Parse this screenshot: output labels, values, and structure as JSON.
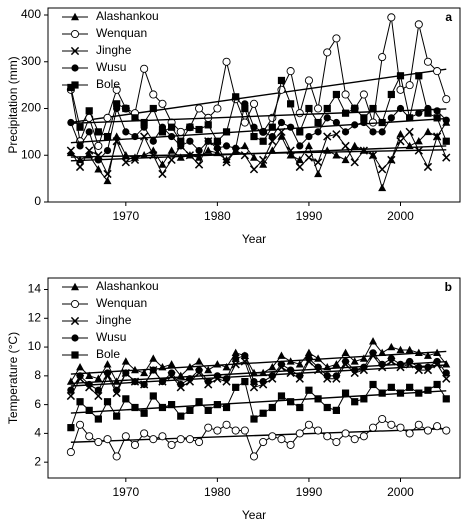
{
  "chart_data": [
    {
      "type": "line",
      "panel_label": "a",
      "x_label": "Year",
      "y_label": "Precipitation (mm)",
      "x": [
        1964,
        1965,
        1966,
        1967,
        1968,
        1969,
        1970,
        1971,
        1972,
        1973,
        1974,
        1975,
        1976,
        1977,
        1978,
        1979,
        1980,
        1981,
        1982,
        1983,
        1984,
        1985,
        1986,
        1987,
        1988,
        1989,
        1990,
        1991,
        1992,
        1993,
        1994,
        1995,
        1996,
        1997,
        1998,
        1999,
        2000,
        2001,
        2002,
        2003,
        2004,
        2005
      ],
      "xlim": [
        1961.5,
        2006.5
      ],
      "xticks": [
        1970,
        1980,
        1990,
        2000
      ],
      "ylim": [
        0,
        415
      ],
      "yticks": [
        0,
        100,
        200,
        300,
        400
      ],
      "legend": "top-left",
      "trend_lines": true,
      "series": [
        {
          "name": "Alashankou",
          "marker": "triangle",
          "color": "#000",
          "values": [
            105,
            90,
            100,
            70,
            45,
            140,
            100,
            95,
            100,
            110,
            80,
            110,
            95,
            100,
            95,
            110,
            105,
            90,
            110,
            120,
            95,
            80,
            110,
            140,
            100,
            90,
            120,
            60,
            110,
            100,
            90,
            120,
            110,
            100,
            30,
            90,
            145,
            120,
            130,
            150,
            140,
            170
          ]
        },
        {
          "name": "Wenquan",
          "marker": "open-circle",
          "color": "#000",
          "values": [
            240,
            130,
            180,
            120,
            180,
            240,
            200,
            190,
            285,
            230,
            210,
            170,
            150,
            160,
            200,
            180,
            200,
            300,
            220,
            170,
            210,
            150,
            180,
            240,
            280,
            190,
            260,
            200,
            320,
            350,
            230,
            200,
            230,
            170,
            310,
            395,
            240,
            250,
            380,
            300,
            280,
            220
          ]
        },
        {
          "name": "Jinghe",
          "marker": "cross",
          "color": "#000",
          "values": [
            110,
            75,
            110,
            100,
            60,
            130,
            85,
            90,
            140,
            100,
            60,
            90,
            120,
            100,
            80,
            130,
            120,
            85,
            110,
            100,
            70,
            90,
            130,
            150,
            110,
            75,
            95,
            85,
            140,
            145,
            120,
            85,
            110,
            100,
            70,
            90,
            130,
            150,
            110,
            75,
            140,
            95
          ]
        },
        {
          "name": "Wusu",
          "marker": "circle",
          "color": "#000",
          "values": [
            170,
            120,
            150,
            90,
            110,
            200,
            150,
            140,
            160,
            130,
            160,
            140,
            120,
            130,
            110,
            130,
            115,
            120,
            115,
            210,
            160,
            150,
            140,
            170,
            160,
            120,
            140,
            150,
            180,
            170,
            150,
            165,
            170,
            150,
            150,
            180,
            200,
            180,
            190,
            200,
            195,
            175
          ]
        },
        {
          "name": "Bole",
          "marker": "square",
          "color": "#000",
          "values": [
            245,
            160,
            195,
            150,
            140,
            210,
            200,
            180,
            170,
            200,
            150,
            160,
            130,
            160,
            155,
            165,
            130,
            150,
            225,
            200,
            140,
            130,
            160,
            260,
            210,
            150,
            200,
            170,
            200,
            230,
            190,
            200,
            180,
            200,
            170,
            230,
            270,
            180,
            270,
            190,
            180,
            130
          ]
        }
      ]
    },
    {
      "type": "line",
      "panel_label": "b",
      "x_label": "Year",
      "y_label": "Temperature (°C)",
      "x": [
        1964,
        1965,
        1966,
        1967,
        1968,
        1969,
        1970,
        1971,
        1972,
        1973,
        1974,
        1975,
        1976,
        1977,
        1978,
        1979,
        1980,
        1981,
        1982,
        1983,
        1984,
        1985,
        1986,
        1987,
        1988,
        1989,
        1990,
        1991,
        1992,
        1993,
        1994,
        1995,
        1996,
        1997,
        1998,
        1999,
        2000,
        2001,
        2002,
        2003,
        2004,
        2005
      ],
      "xlim": [
        1961.5,
        2006.5
      ],
      "xticks": [
        1970,
        1980,
        1990,
        2000
      ],
      "ylim": [
        0.9,
        14.8
      ],
      "yticks": [
        2,
        4,
        6,
        8,
        10,
        12,
        14
      ],
      "legend": "top-left",
      "trend_lines": true,
      "series": [
        {
          "name": "Alashankou",
          "marker": "triangle",
          "color": "#000",
          "values": [
            7.6,
            8.6,
            8.0,
            7.8,
            8.8,
            7.6,
            9.0,
            8.4,
            8.2,
            9.2,
            8.6,
            8.8,
            8.0,
            8.6,
            9.0,
            8.4,
            8.8,
            8.6,
            9.6,
            9.4,
            8.2,
            8.2,
            8.6,
            9.4,
            9.0,
            8.8,
            9.6,
            9.2,
            8.6,
            8.8,
            9.6,
            9.0,
            9.2,
            10.4,
            9.6,
            10.0,
            9.8,
            9.8,
            9.6,
            9.4,
            9.6,
            8.8
          ]
        },
        {
          "name": "Wenquan",
          "marker": "open-circle",
          "color": "#000",
          "values": [
            2.7,
            4.6,
            3.8,
            3.4,
            3.6,
            2.4,
            3.8,
            3.2,
            4.0,
            3.6,
            3.8,
            3.2,
            3.6,
            3.6,
            3.4,
            4.4,
            4.2,
            4.6,
            4.2,
            4.2,
            2.4,
            3.4,
            3.8,
            3.6,
            3.2,
            4.0,
            4.6,
            4.2,
            3.8,
            3.4,
            4.0,
            3.6,
            3.8,
            4.4,
            5.0,
            4.6,
            4.4,
            4.0,
            4.6,
            4.2,
            4.5,
            4.2
          ]
        },
        {
          "name": "Jinghe",
          "marker": "cross",
          "color": "#000",
          "values": [
            6.6,
            7.8,
            7.2,
            6.6,
            8.0,
            6.8,
            8.2,
            7.6,
            7.4,
            8.4,
            7.6,
            8.0,
            7.2,
            7.6,
            8.2,
            7.4,
            7.8,
            7.6,
            8.8,
            9.0,
            7.2,
            7.4,
            7.8,
            8.6,
            8.2,
            7.8,
            9.0,
            8.4,
            7.8,
            7.8,
            8.8,
            8.2,
            8.4,
            9.4,
            8.6,
            9.0,
            8.6,
            8.8,
            8.4,
            8.4,
            8.8,
            7.8
          ]
        },
        {
          "name": "Wusu",
          "marker": "circle",
          "color": "#000",
          "values": [
            7.0,
            8.0,
            7.4,
            7.0,
            8.2,
            7.0,
            8.2,
            7.6,
            7.4,
            8.4,
            7.6,
            8.2,
            7.4,
            7.8,
            8.4,
            7.6,
            8.0,
            7.8,
            9.2,
            9.4,
            7.6,
            7.6,
            8.0,
            8.8,
            8.4,
            8.0,
            9.2,
            8.6,
            8.0,
            8.0,
            9.0,
            8.4,
            8.6,
            9.6,
            8.8,
            9.2,
            8.8,
            9.0,
            8.6,
            8.6,
            9.0,
            8.2
          ]
        },
        {
          "name": "Bole",
          "marker": "square",
          "color": "#000",
          "values": [
            4.4,
            6.2,
            5.6,
            5.0,
            6.2,
            5.2,
            6.4,
            5.8,
            5.4,
            6.6,
            5.8,
            6.0,
            5.2,
            5.6,
            6.2,
            5.6,
            6.0,
            5.8,
            7.2,
            7.6,
            5.0,
            5.4,
            5.8,
            6.6,
            6.2,
            5.8,
            7.0,
            6.4,
            5.8,
            5.6,
            6.8,
            6.2,
            6.4,
            7.4,
            6.8,
            7.2,
            6.8,
            7.2,
            6.8,
            7.0,
            7.4,
            6.4
          ]
        }
      ]
    }
  ]
}
